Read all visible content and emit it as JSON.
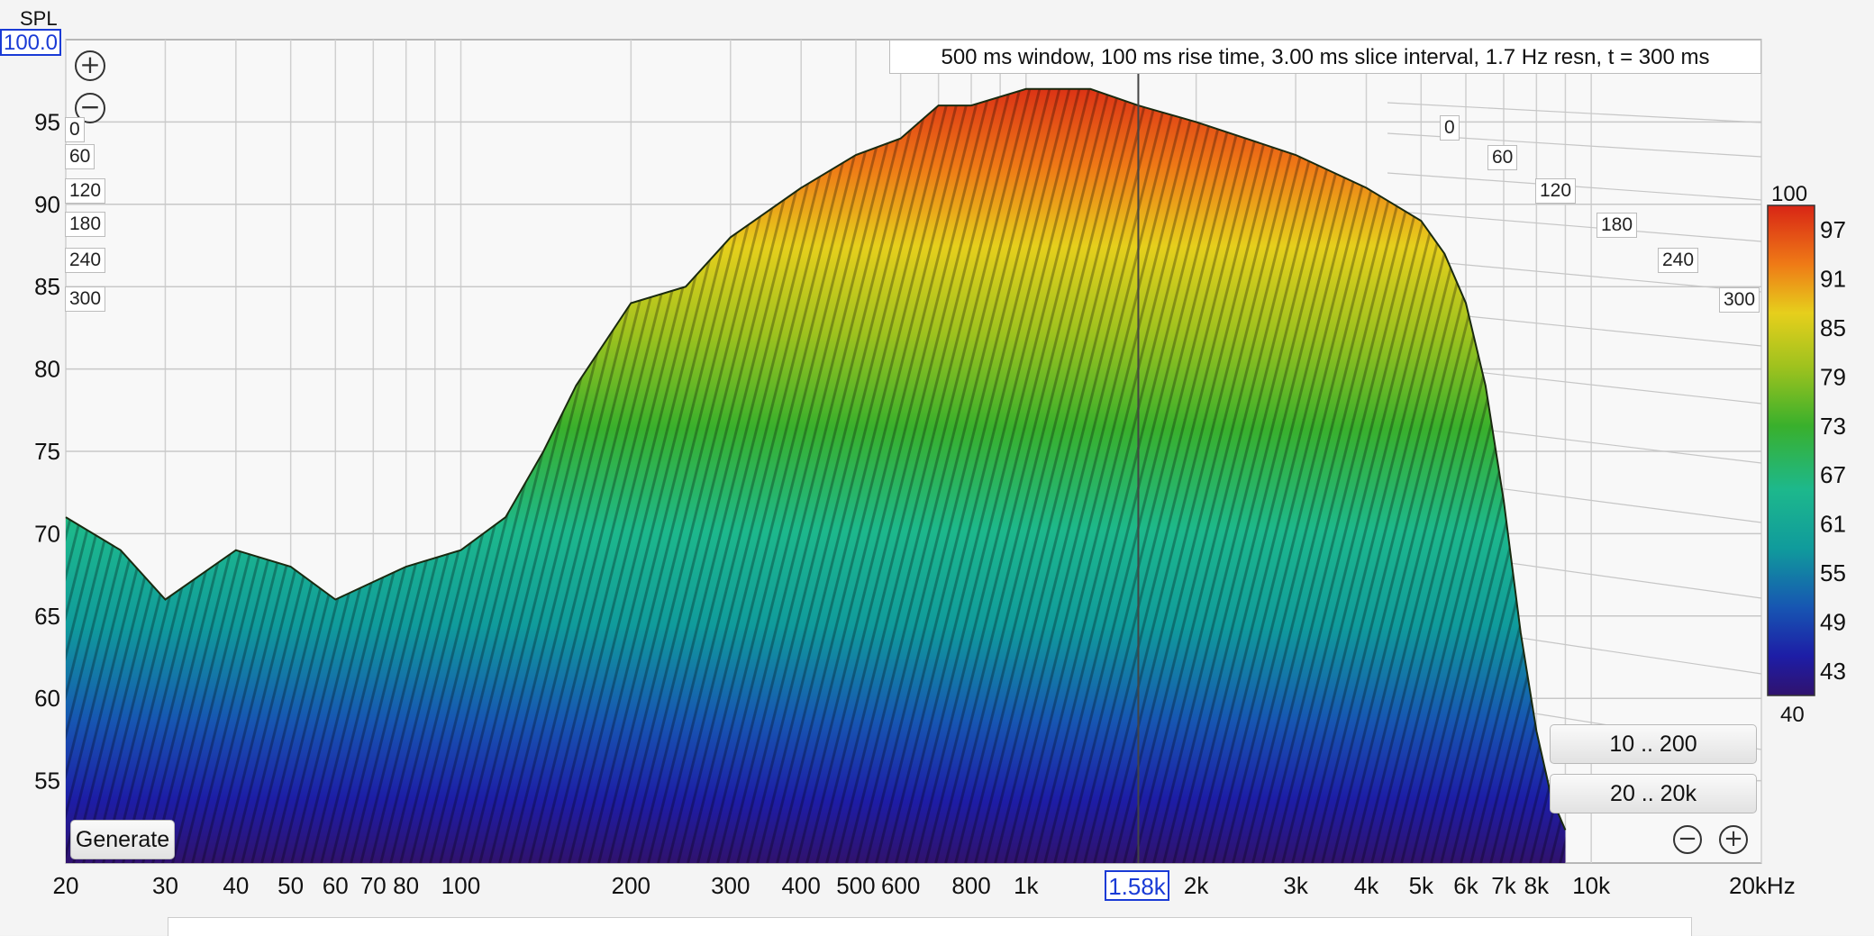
{
  "chart_data": {
    "type": "waterfall",
    "title": "500 ms window, 100 ms rise time, 3.00 ms slice interval, 1.7 Hz resn, t = 300 ms",
    "ylabel": "SPL",
    "y_top": "100.0",
    "ylim": [
      50,
      100
    ],
    "y_ticks": [
      "95",
      "90",
      "85",
      "80",
      "75",
      "70",
      "65",
      "60",
      "55"
    ],
    "y_tick_values": [
      95,
      90,
      85,
      80,
      75,
      70,
      65,
      60,
      55
    ],
    "xscale": "log",
    "xlim": [
      20,
      20000
    ],
    "x_tick_values": [
      20,
      30,
      40,
      50,
      60,
      70,
      80,
      100,
      200,
      300,
      400,
      500,
      600,
      800,
      1000,
      2000,
      3000,
      4000,
      5000,
      6000,
      7000,
      8000,
      10000,
      20000
    ],
    "x_tick_labels": [
      "20",
      "30",
      "40",
      "50",
      "60",
      "70",
      "80",
      "100",
      "200",
      "300",
      "400",
      "500",
      "600",
      "800",
      "1k",
      "2k",
      "3k",
      "4k",
      "5k",
      "6k",
      "7k",
      "8k",
      "10k",
      "20kHz"
    ],
    "cursor": {
      "label": "1.58k",
      "value": 1580
    },
    "time_axis_labels": [
      "0",
      "60",
      "120",
      "180",
      "240",
      "300"
    ],
    "color_scale": {
      "min": "40",
      "max": "100",
      "ticks": [
        "97",
        "91",
        "85",
        "79",
        "73",
        "67",
        "61",
        "55",
        "49",
        "43"
      ],
      "tick_values": [
        97,
        91,
        85,
        79,
        73,
        67,
        61,
        55,
        49,
        43
      ]
    },
    "envelope_front": [
      [
        20,
        71
      ],
      [
        25,
        69
      ],
      [
        30,
        66
      ],
      [
        40,
        69
      ],
      [
        50,
        68
      ],
      [
        60,
        66
      ],
      [
        80,
        68
      ],
      [
        100,
        69
      ],
      [
        120,
        71
      ],
      [
        140,
        75
      ],
      [
        160,
        79
      ],
      [
        200,
        84
      ],
      [
        250,
        85
      ],
      [
        300,
        88
      ],
      [
        400,
        91
      ],
      [
        500,
        93
      ],
      [
        600,
        94
      ],
      [
        700,
        96
      ],
      [
        800,
        96
      ],
      [
        1000,
        97
      ],
      [
        1300,
        97
      ],
      [
        1580,
        96
      ],
      [
        2000,
        95
      ],
      [
        3000,
        93
      ],
      [
        4000,
        91
      ],
      [
        5000,
        89
      ],
      [
        5500,
        87
      ],
      [
        6000,
        84
      ],
      [
        6500,
        79
      ],
      [
        7000,
        72
      ],
      [
        7500,
        64
      ],
      [
        8000,
        58
      ],
      [
        8500,
        54
      ],
      [
        9000,
        52
      ]
    ]
  },
  "buttons": {
    "generate": "Generate",
    "range_low": "10 .. 200",
    "range_full": "20 .. 20k"
  }
}
